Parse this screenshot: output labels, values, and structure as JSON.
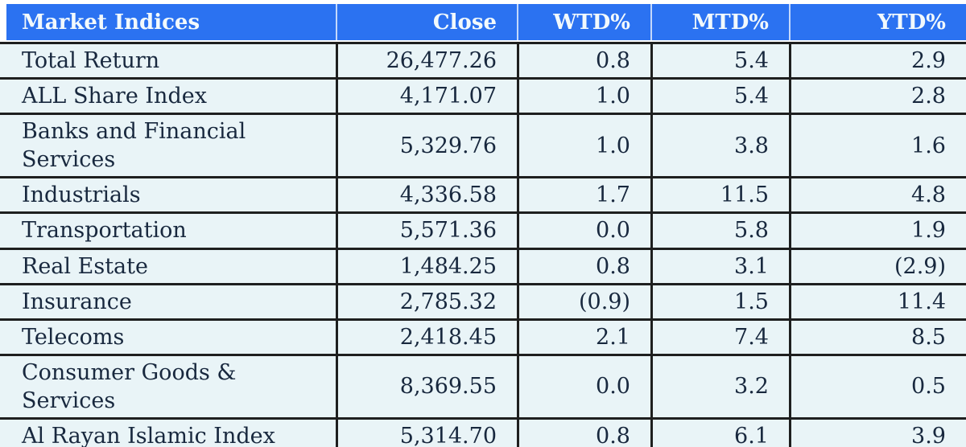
{
  "colors": {
    "header_bg": "#2B72F1",
    "header_text": "#F2F9FC",
    "row_bg": "#E9F4F7",
    "text_color": "#18283E",
    "border_color": "#1E1F1F",
    "page_bg": "#FFFFFF"
  },
  "chart_data": {
    "type": "table",
    "title": "Market Indices",
    "columns": [
      "Market Indices",
      "Close",
      "WTD%",
      "MTD%",
      "YTD%"
    ],
    "rows": [
      [
        "Total Return",
        "26,477.26",
        "0.8",
        "5.4",
        "2.9"
      ],
      [
        "ALL Share Index",
        "4,171.07",
        "1.0",
        "5.4",
        "2.8"
      ],
      [
        "Banks and Financial\nServices",
        "5,329.76",
        "1.0",
        "3.8",
        "1.6"
      ],
      [
        "Industrials",
        "4,336.58",
        "1.7",
        "11.5",
        "4.8"
      ],
      [
        "Transportation",
        "5,571.36",
        "0.0",
        "5.8",
        "1.9"
      ],
      [
        "Real Estate",
        "1,484.25",
        "0.8",
        "3.1",
        "(2.9)"
      ],
      [
        "Insurance",
        "2,785.32",
        "(0.9)",
        "1.5",
        "11.4"
      ],
      [
        "Telecoms",
        "2,418.45",
        "2.1",
        "7.4",
        "8.5"
      ],
      [
        "Consumer Goods & Services",
        "8,369.55",
        "0.0",
        "3.2",
        "0.5"
      ],
      [
        "Al Rayan Islamic Index",
        "5,314.70",
        "0.8",
        "6.1",
        "3.9"
      ]
    ],
    "negative_convention": "parentheses",
    "layout": {
      "header_position": "top",
      "numeric_alignment": "right",
      "grid": "on"
    }
  }
}
